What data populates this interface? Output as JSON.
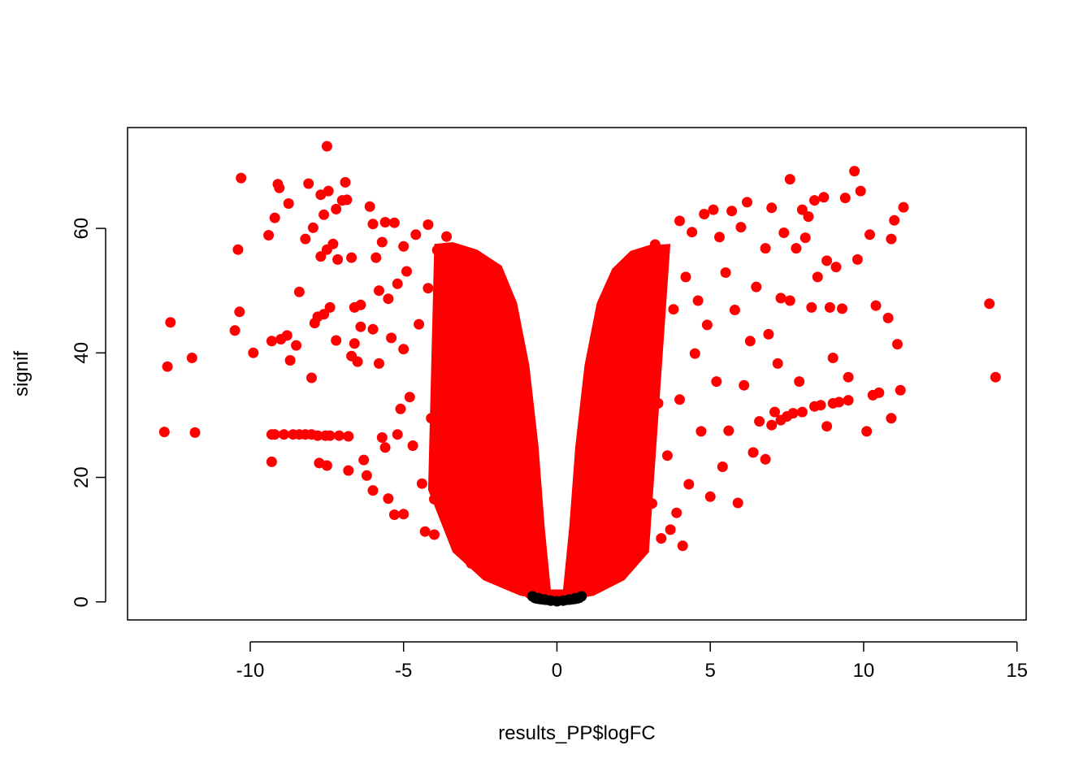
{
  "chart_data": {
    "type": "scatter",
    "title": "",
    "xlabel": "results_PP$logFC",
    "ylabel": "signif",
    "xlim": [
      -14.0,
      15.3
    ],
    "ylim": [
      -2.9,
      76.2
    ],
    "x_ticks": [
      -10,
      -5,
      0,
      5,
      10,
      15
    ],
    "x_tick_labels": [
      "-10",
      "-5",
      "0",
      "5",
      "10",
      "15"
    ],
    "y_ticks": [
      0,
      20,
      40,
      60
    ],
    "y_tick_labels": [
      "0",
      "20",
      "40",
      "60"
    ],
    "grid": false,
    "legend": "none",
    "colors": {
      "significant": "#ff0000",
      "not_significant": "#000000"
    },
    "series": [
      {
        "color": "#ff0000",
        "points": [
          [
            -12.8,
            27.3
          ],
          [
            -12.7,
            37.8
          ],
          [
            -12.6,
            44.9
          ],
          [
            -11.9,
            39.2
          ],
          [
            -11.8,
            27.2
          ],
          [
            -10.5,
            43.6
          ],
          [
            -10.4,
            56.6
          ],
          [
            -10.35,
            46.6
          ],
          [
            -10.3,
            68.1
          ],
          [
            -9.9,
            40.0
          ],
          [
            -9.4,
            58.9
          ],
          [
            -9.3,
            22.5
          ],
          [
            -9.3,
            26.9
          ],
          [
            -9.3,
            41.9
          ],
          [
            -9.2,
            61.7
          ],
          [
            -9.2,
            26.9
          ],
          [
            -9.1,
            67.1
          ],
          [
            -9.05,
            66.5
          ],
          [
            -9.0,
            42.2
          ],
          [
            -8.9,
            26.9
          ],
          [
            -8.8,
            42.8
          ],
          [
            -8.75,
            64.0
          ],
          [
            -8.7,
            38.8
          ],
          [
            -8.6,
            26.9
          ],
          [
            -8.5,
            41.2
          ],
          [
            -8.4,
            49.8
          ],
          [
            -8.4,
            26.9
          ],
          [
            -8.2,
            58.3
          ],
          [
            -8.2,
            26.9
          ],
          [
            -8.1,
            67.2
          ],
          [
            -8.0,
            36.0
          ],
          [
            -8.0,
            26.9
          ],
          [
            -7.95,
            60.1
          ],
          [
            -7.9,
            44.8
          ],
          [
            -7.8,
            45.8
          ],
          [
            -7.8,
            26.7
          ],
          [
            -7.75,
            22.3
          ],
          [
            -7.7,
            55.5
          ],
          [
            -7.7,
            65.4
          ],
          [
            -7.6,
            46.2
          ],
          [
            -7.6,
            62.2
          ],
          [
            -7.55,
            26.7
          ],
          [
            -7.5,
            73.2
          ],
          [
            -7.5,
            56.6
          ],
          [
            -7.5,
            21.9
          ],
          [
            -7.45,
            66.0
          ],
          [
            -7.4,
            47.3
          ],
          [
            -7.4,
            26.7
          ],
          [
            -7.3,
            57.5
          ],
          [
            -7.2,
            42.0
          ],
          [
            -7.2,
            63.1
          ],
          [
            -7.15,
            55.0
          ],
          [
            -7.1,
            26.7
          ],
          [
            -7.0,
            64.5
          ],
          [
            -6.9,
            67.4
          ],
          [
            -6.85,
            64.6
          ],
          [
            -6.8,
            26.6
          ],
          [
            -6.8,
            21.1
          ],
          [
            -6.7,
            39.5
          ],
          [
            -6.7,
            55.3
          ],
          [
            -6.6,
            41.5
          ],
          [
            -6.6,
            47.3
          ],
          [
            -6.5,
            38.6
          ],
          [
            -6.4,
            44.2
          ],
          [
            -6.4,
            47.7
          ],
          [
            -6.3,
            22.8
          ],
          [
            -6.2,
            20.3
          ],
          [
            -6.1,
            63.5
          ],
          [
            -6.0,
            60.7
          ],
          [
            -6.0,
            43.8
          ],
          [
            -6.0,
            17.9
          ],
          [
            -5.9,
            55.3
          ],
          [
            -5.8,
            50.0
          ],
          [
            -5.8,
            38.3
          ],
          [
            -5.7,
            57.8
          ],
          [
            -5.7,
            26.4
          ],
          [
            -5.6,
            61.0
          ],
          [
            -5.6,
            24.8
          ],
          [
            -5.5,
            48.7
          ],
          [
            -5.5,
            16.6
          ],
          [
            -5.4,
            42.4
          ],
          [
            -5.3,
            60.9
          ],
          [
            -5.3,
            14.0
          ],
          [
            -5.2,
            51.1
          ],
          [
            -5.2,
            26.9
          ],
          [
            -5.1,
            31.0
          ],
          [
            -5.0,
            57.1
          ],
          [
            -5.0,
            40.6
          ],
          [
            -5.0,
            14.1
          ],
          [
            -4.9,
            53.1
          ],
          [
            -4.8,
            32.9
          ],
          [
            -4.7,
            25.1
          ],
          [
            -4.6,
            59.0
          ],
          [
            -4.5,
            44.6
          ],
          [
            -4.4,
            19.0
          ],
          [
            -4.3,
            11.3
          ],
          [
            -4.2,
            60.6
          ],
          [
            -4.2,
            50.4
          ],
          [
            -4.1,
            29.5
          ],
          [
            -4.0,
            16.5
          ],
          [
            -4.0,
            10.8
          ],
          [
            -3.9,
            56.5
          ],
          [
            -3.9,
            35.2
          ],
          [
            -3.8,
            41.6
          ],
          [
            -3.7,
            22.2
          ],
          [
            -3.6,
            58.7
          ],
          [
            -3.5,
            27.3
          ],
          [
            -3.4,
            52.7
          ],
          [
            -3.3,
            17.1
          ],
          [
            -3.2,
            8.6
          ],
          [
            -3.1,
            48.2
          ],
          [
            -3.0,
            12.3
          ],
          [
            -2.9,
            30.3
          ],
          [
            -2.8,
            6.2
          ],
          [
            -2.6,
            19.7
          ],
          [
            -2.4,
            43.4
          ],
          [
            -2.2,
            4.9
          ],
          [
            -2.0,
            25.8
          ],
          [
            -1.8,
            3.4
          ],
          [
            -1.5,
            10.9
          ],
          [
            -1.2,
            2.0
          ],
          [
            -0.9,
            1.4
          ],
          [
            -0.6,
            1.0
          ],
          [
            -0.3,
            0.6
          ],
          [
            -0.1,
            0.4
          ],
          [
            0.1,
            0.4
          ],
          [
            0.3,
            0.7
          ],
          [
            0.6,
            1.1
          ],
          [
            0.9,
            1.5
          ],
          [
            1.2,
            2.1
          ],
          [
            1.5,
            3.0
          ],
          [
            1.8,
            3.7
          ],
          [
            2.0,
            5.2
          ],
          [
            2.2,
            7.0
          ],
          [
            2.4,
            45.9
          ],
          [
            2.6,
            13.5
          ],
          [
            2.8,
            8.4
          ],
          [
            2.9,
            52.8
          ],
          [
            3.0,
            21.1
          ],
          [
            3.1,
            15.8
          ],
          [
            3.2,
            57.4
          ],
          [
            3.3,
            31.9
          ],
          [
            3.4,
            10.2
          ],
          [
            3.5,
            56.5
          ],
          [
            3.6,
            23.5
          ],
          [
            3.7,
            11.6
          ],
          [
            3.8,
            47.0
          ],
          [
            3.9,
            14.3
          ],
          [
            4.0,
            61.2
          ],
          [
            4.0,
            32.5
          ],
          [
            4.1,
            9.0
          ],
          [
            4.2,
            52.2
          ],
          [
            4.3,
            18.9
          ],
          [
            4.4,
            59.4
          ],
          [
            4.5,
            39.9
          ],
          [
            4.6,
            48.4
          ],
          [
            4.7,
            27.4
          ],
          [
            4.8,
            62.3
          ],
          [
            4.9,
            44.5
          ],
          [
            5.0,
            16.9
          ],
          [
            5.1,
            63.0
          ],
          [
            5.2,
            35.4
          ],
          [
            5.3,
            58.6
          ],
          [
            5.4,
            21.7
          ],
          [
            5.5,
            52.9
          ],
          [
            5.6,
            27.5
          ],
          [
            5.7,
            62.8
          ],
          [
            5.8,
            46.9
          ],
          [
            5.9,
            15.9
          ],
          [
            6.0,
            60.2
          ],
          [
            6.1,
            34.8
          ],
          [
            6.2,
            64.2
          ],
          [
            6.3,
            41.9
          ],
          [
            6.4,
            24.0
          ],
          [
            6.5,
            50.6
          ],
          [
            6.6,
            29.0
          ],
          [
            6.8,
            56.8
          ],
          [
            6.8,
            22.9
          ],
          [
            6.9,
            43.0
          ],
          [
            7.0,
            63.3
          ],
          [
            7.0,
            28.4
          ],
          [
            7.1,
            30.5
          ],
          [
            7.2,
            38.3
          ],
          [
            7.3,
            48.8
          ],
          [
            7.3,
            29.2
          ],
          [
            7.4,
            59.3
          ],
          [
            7.5,
            29.8
          ],
          [
            7.6,
            67.9
          ],
          [
            7.6,
            48.4
          ],
          [
            7.7,
            30.3
          ],
          [
            7.8,
            56.8
          ],
          [
            7.9,
            35.4
          ],
          [
            8.0,
            63.0
          ],
          [
            8.0,
            30.5
          ],
          [
            8.1,
            58.5
          ],
          [
            8.2,
            61.9
          ],
          [
            8.3,
            47.3
          ],
          [
            8.4,
            31.4
          ],
          [
            8.4,
            64.5
          ],
          [
            8.5,
            52.2
          ],
          [
            8.6,
            31.6
          ],
          [
            8.7,
            65.0
          ],
          [
            8.8,
            54.8
          ],
          [
            8.8,
            28.2
          ],
          [
            8.9,
            47.3
          ],
          [
            9.0,
            39.2
          ],
          [
            9.0,
            31.9
          ],
          [
            9.1,
            53.8
          ],
          [
            9.2,
            32.1
          ],
          [
            9.3,
            47.1
          ],
          [
            9.4,
            64.9
          ],
          [
            9.5,
            36.1
          ],
          [
            9.5,
            32.4
          ],
          [
            9.7,
            69.2
          ],
          [
            9.8,
            55.0
          ],
          [
            9.9,
            66.0
          ],
          [
            10.1,
            27.4
          ],
          [
            10.2,
            59.0
          ],
          [
            10.3,
            33.2
          ],
          [
            10.4,
            47.6
          ],
          [
            10.5,
            33.6
          ],
          [
            10.8,
            45.6
          ],
          [
            10.9,
            58.3
          ],
          [
            10.9,
            29.5
          ],
          [
            11.0,
            61.3
          ],
          [
            11.1,
            41.4
          ],
          [
            11.2,
            34.0
          ],
          [
            11.3,
            63.4
          ],
          [
            14.1,
            47.9
          ],
          [
            14.3,
            36.1
          ]
        ]
      },
      {
        "color": "#000000",
        "points": [
          [
            -0.8,
            0.9
          ],
          [
            -0.6,
            0.6
          ],
          [
            -0.4,
            0.4
          ],
          [
            -0.2,
            0.2
          ],
          [
            0.0,
            0.1
          ],
          [
            0.2,
            0.2
          ],
          [
            0.4,
            0.4
          ],
          [
            0.6,
            0.6
          ],
          [
            0.8,
            0.9
          ]
        ]
      }
    ]
  }
}
